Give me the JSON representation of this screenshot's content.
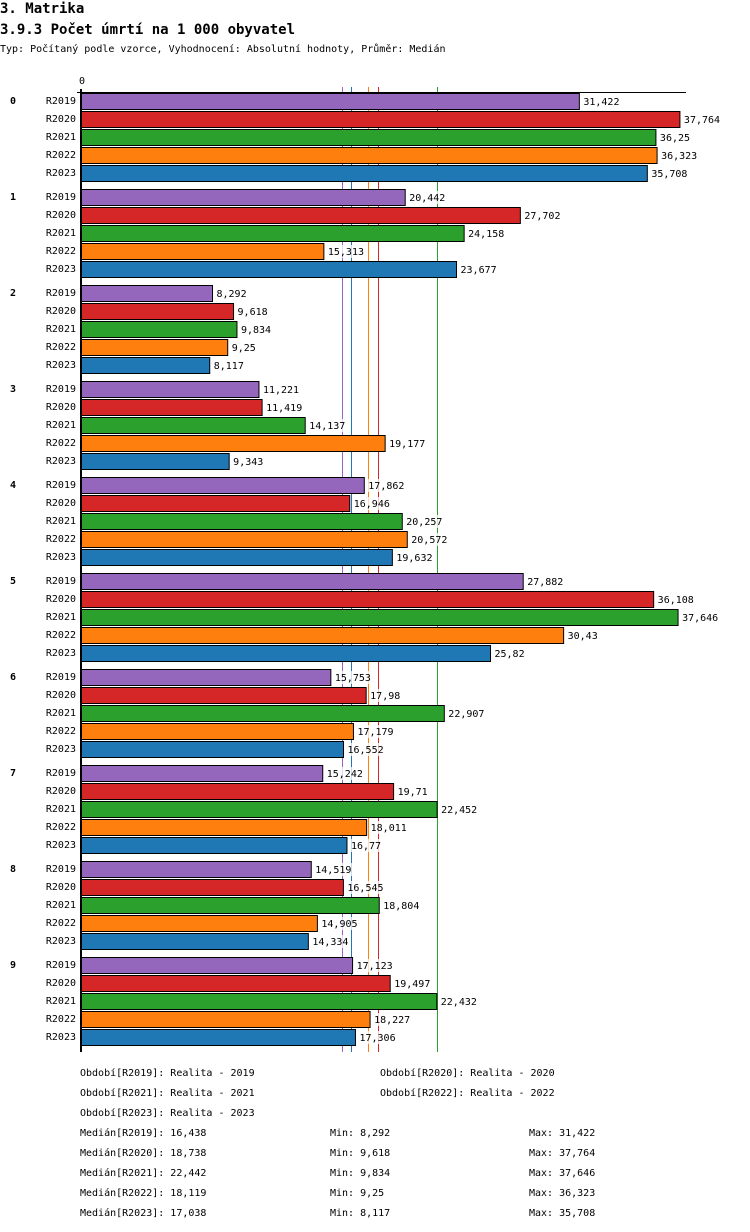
{
  "header": {
    "section": "3. Matrika",
    "title": "3.9.3 Počet úmrtí na 1 000 obyvatel",
    "subtitle": "Typ: Počítaný podle vzorce, Vyhodnocení: Absolutní hodnoty, Průměr: Medián"
  },
  "chart_data": {
    "type": "bar",
    "orientation": "horizontal",
    "title": "3.9.3 Počet úmrtí na 1 000 obyvatel",
    "axis_zero_label": "0",
    "xlim": [
      0,
      38.4
    ],
    "categories": [
      "0",
      "1",
      "2",
      "3",
      "4",
      "5",
      "6",
      "7",
      "8",
      "9"
    ],
    "series": [
      {
        "name": "R2019",
        "color": "#9467bd",
        "values": [
          31.422,
          20.442,
          8.292,
          11.221,
          17.862,
          27.882,
          15.753,
          15.242,
          14.519,
          17.123
        ],
        "labels": [
          "31,422",
          "20,442",
          "8,292",
          "11,221",
          "17,862",
          "27,882",
          "15,753",
          "15,242",
          "14,519",
          "17,123"
        ],
        "median": 16.438
      },
      {
        "name": "R2020",
        "color": "#d62728",
        "values": [
          37.764,
          27.702,
          9.618,
          11.419,
          16.946,
          36.108,
          17.98,
          19.71,
          16.545,
          19.497
        ],
        "labels": [
          "37,764",
          "27,702",
          "9,618",
          "11,419",
          "16,946",
          "36,108",
          "17,98",
          "19,71",
          "16,545",
          "19,497"
        ],
        "median": 18.738
      },
      {
        "name": "R2021",
        "color": "#2ca02c",
        "values": [
          36.25,
          24.158,
          9.834,
          14.137,
          20.257,
          37.646,
          22.907,
          22.452,
          18.804,
          22.432
        ],
        "labels": [
          "36,25",
          "24,158",
          "9,834",
          "14,137",
          "20,257",
          "37,646",
          "22,907",
          "22,452",
          "18,804",
          "22,432"
        ],
        "median": 22.442
      },
      {
        "name": "R2022",
        "color": "#ff7f0e",
        "values": [
          36.323,
          15.313,
          9.25,
          19.177,
          20.572,
          30.43,
          17.179,
          18.011,
          14.905,
          18.227
        ],
        "labels": [
          "36,323",
          "15,313",
          "9,25",
          "19,177",
          "20,572",
          "30,43",
          "17,179",
          "18,011",
          "14,905",
          "18,227"
        ],
        "median": 18.119
      },
      {
        "name": "R2023",
        "color": "#1f77b4",
        "values": [
          35.708,
          23.677,
          8.117,
          9.343,
          19.632,
          25.82,
          16.552,
          16.77,
          14.334,
          17.306
        ],
        "labels": [
          "35,708",
          "23,677",
          "8,117",
          "9,343",
          "19,632",
          "25,82",
          "16,552",
          "16,77",
          "14,334",
          "17,306"
        ],
        "median": 17.038
      }
    ],
    "legend": [
      "Období[R2019]: Realita - 2019",
      "Období[R2020]: Realita - 2020",
      "Období[R2021]: Realita - 2021",
      "Období[R2022]: Realita - 2022",
      "Období[R2023]: Realita - 2023"
    ],
    "stats": [
      {
        "median": "Medián[R2019]: 16,438",
        "min": "Min: 8,292",
        "max": "Max: 31,422"
      },
      {
        "median": "Medián[R2020]: 18,738",
        "min": "Min: 9,618",
        "max": "Max: 37,764"
      },
      {
        "median": "Medián[R2021]: 22,442",
        "min": "Min: 9,834",
        "max": "Max: 37,646"
      },
      {
        "median": "Medián[R2022]: 18,119",
        "min": "Min: 9,25",
        "max": "Max: 36,323"
      },
      {
        "median": "Medián[R2023]: 17,038",
        "min": "Min: 8,117",
        "max": "Max: 35,708"
      }
    ]
  }
}
